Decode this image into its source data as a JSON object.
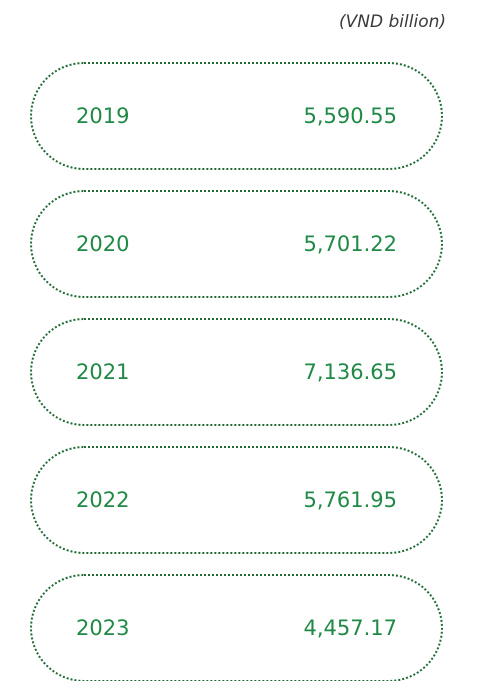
{
  "unit": "(VND billion)",
  "rows": [
    {
      "year": "2019",
      "value": "5,590.55"
    },
    {
      "year": "2020",
      "value": "5,701.22"
    },
    {
      "year": "2021",
      "value": "7,136.65"
    },
    {
      "year": "2022",
      "value": "5,761.95"
    },
    {
      "year": "2023",
      "value": "4,457.17"
    }
  ]
}
